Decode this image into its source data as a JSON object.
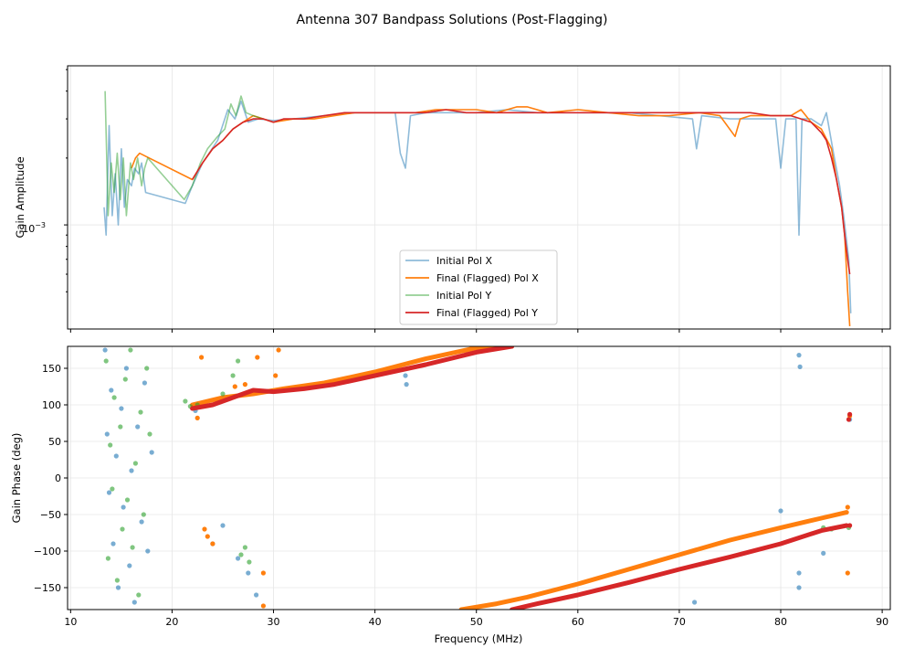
{
  "chart_data": [
    {
      "type": "line",
      "title": "Antenna 307 Bandpass Solutions (Post-Flagging)",
      "ylabel": "Gain Amplitude",
      "yscale": "log",
      "xlim": [
        9.7,
        90.8
      ],
      "ylim": [
        0.00034,
        0.0052
      ],
      "ytick_label": "10",
      "ytick_exponent": "−3",
      "legend_position": "lower center",
      "grid": true,
      "series": [
        {
          "name": "Initial Pol X",
          "color": "#1f77b4",
          "alpha": 0.5,
          "x": [
            13.3,
            13.5,
            13.8,
            14.1,
            14.4,
            14.7,
            15.0,
            15.3,
            15.6,
            16.0,
            16.3,
            16.7,
            17.0,
            17.4,
            21.3,
            22.0,
            23.0,
            24.5,
            25.5,
            26.2,
            26.8,
            27.5,
            28.5,
            30,
            32,
            35,
            38,
            40,
            42,
            42.5,
            43.0,
            43.5,
            45,
            47,
            50,
            53,
            56,
            59,
            62,
            65,
            68,
            71.3,
            71.7,
            72.2,
            75,
            77,
            79.5,
            80.0,
            80.5,
            81.5,
            81.8,
            82.1,
            83,
            84,
            84.5,
            85.2,
            85.8,
            86.2,
            86.7,
            86.9
          ],
          "y": [
            0.0012,
            0.0009,
            0.0028,
            0.0011,
            0.0017,
            0.001,
            0.0022,
            0.0012,
            0.0016,
            0.0015,
            0.0018,
            0.0017,
            0.0019,
            0.0014,
            0.00125,
            0.0015,
            0.0019,
            0.0024,
            0.0033,
            0.003,
            0.0036,
            0.0029,
            0.003,
            0.00295,
            0.003,
            0.0031,
            0.0032,
            0.0032,
            0.0032,
            0.0021,
            0.0018,
            0.0031,
            0.0032,
            0.0032,
            0.0032,
            0.0033,
            0.0032,
            0.0032,
            0.0032,
            0.0032,
            0.0031,
            0.003,
            0.0022,
            0.0031,
            0.003,
            0.003,
            0.003,
            0.0018,
            0.003,
            0.003,
            0.0009,
            0.003,
            0.003,
            0.0028,
            0.0032,
            0.0021,
            0.0015,
            0.0011,
            0.0007,
            0.0004
          ]
        },
        {
          "name": "Final (Flagged) Pol X",
          "color": "#ff7f0e",
          "alpha": 1.0,
          "x": [
            16.0,
            16.4,
            16.8,
            22.0,
            23,
            24,
            25,
            26,
            27,
            28,
            29,
            30,
            32,
            34,
            36,
            38,
            40,
            42,
            44,
            46,
            48,
            50,
            52,
            54,
            55,
            57,
            60,
            63,
            66,
            69,
            72,
            74,
            75.5,
            76,
            77,
            79,
            81,
            82,
            83,
            84,
            85,
            85.5,
            86,
            86.3,
            86.6,
            86.8
          ],
          "y": [
            0.0018,
            0.002,
            0.0021,
            0.0016,
            0.0019,
            0.0022,
            0.0024,
            0.0027,
            0.0029,
            0.0031,
            0.003,
            0.0029,
            0.003,
            0.003,
            0.0031,
            0.0032,
            0.0032,
            0.0032,
            0.0032,
            0.0033,
            0.0033,
            0.0033,
            0.0032,
            0.0034,
            0.0034,
            0.0032,
            0.0033,
            0.0032,
            0.0031,
            0.0031,
            0.0032,
            0.0031,
            0.0025,
            0.003,
            0.0031,
            0.0031,
            0.0031,
            0.0033,
            0.0029,
            0.0027,
            0.0022,
            0.0016,
            0.0012,
            0.0009,
            0.0005,
            0.00035
          ]
        },
        {
          "name": "Initial Pol Y",
          "color": "#2ca02c",
          "alpha": 0.5,
          "x": [
            13.4,
            13.7,
            14.0,
            14.3,
            14.6,
            14.9,
            15.2,
            15.5,
            15.9,
            16.2,
            16.6,
            17.0,
            17.3,
            17.6,
            21.2,
            22.0,
            22.8,
            23.5,
            24.5,
            25.2,
            25.8,
            26.3,
            26.8,
            27.3,
            28,
            29
          ],
          "y": [
            0.004,
            0.0011,
            0.0019,
            0.0014,
            0.0021,
            0.0013,
            0.002,
            0.0011,
            0.0019,
            0.0016,
            0.002,
            0.0015,
            0.0018,
            0.002,
            0.0013,
            0.0015,
            0.0019,
            0.0022,
            0.0025,
            0.0027,
            0.0035,
            0.0031,
            0.0038,
            0.0032,
            0.0031,
            0.003
          ]
        },
        {
          "name": "Final (Flagged) Pol Y",
          "color": "#d62728",
          "alpha": 1.0,
          "x": [
            22.0,
            23,
            24,
            25,
            26,
            27,
            28,
            29,
            30,
            31,
            33,
            35,
            37,
            39,
            41,
            43,
            45,
            47,
            49,
            51,
            53,
            55,
            57,
            59,
            61,
            63,
            65,
            67,
            69,
            71,
            73,
            75,
            77,
            79,
            80,
            81,
            82,
            83,
            84,
            84.5,
            85,
            85.5,
            86,
            86.3,
            86.6,
            86.8
          ],
          "y": [
            0.0016,
            0.0019,
            0.0022,
            0.0024,
            0.0027,
            0.0029,
            0.003,
            0.003,
            0.0029,
            0.003,
            0.003,
            0.0031,
            0.0032,
            0.0032,
            0.0032,
            0.0032,
            0.0032,
            0.0033,
            0.0032,
            0.0032,
            0.0032,
            0.0032,
            0.0032,
            0.0032,
            0.0032,
            0.0032,
            0.0032,
            0.0032,
            0.0032,
            0.0032,
            0.0032,
            0.0032,
            0.0032,
            0.0031,
            0.0031,
            0.0031,
            0.003,
            0.0029,
            0.0026,
            0.0024,
            0.002,
            0.0016,
            0.0012,
            0.0009,
            0.0007,
            0.0006
          ]
        }
      ]
    },
    {
      "type": "scatter",
      "xlabel": "Frequency (MHz)",
      "ylabel": "Gain Phase (deg)",
      "xlim": [
        9.7,
        90.8
      ],
      "ylim": [
        -180,
        180
      ],
      "xticks": [
        10,
        20,
        30,
        40,
        50,
        60,
        70,
        80,
        90
      ],
      "yticks": [
        -150,
        -100,
        -50,
        0,
        50,
        100,
        150
      ],
      "grid": true,
      "series": [
        {
          "name": "Initial Pol X",
          "color": "#1f77b4",
          "alpha": 0.6,
          "points": [
            [
              13.4,
              175
            ],
            [
              13.6,
              60
            ],
            [
              13.8,
              -20
            ],
            [
              14.0,
              120
            ],
            [
              14.2,
              -90
            ],
            [
              14.5,
              30
            ],
            [
              14.7,
              -150
            ],
            [
              15.0,
              95
            ],
            [
              15.2,
              -40
            ],
            [
              15.5,
              150
            ],
            [
              15.8,
              -120
            ],
            [
              16.0,
              10
            ],
            [
              16.3,
              -170
            ],
            [
              16.6,
              70
            ],
            [
              17.0,
              -60
            ],
            [
              17.3,
              130
            ],
            [
              17.6,
              -100
            ],
            [
              18.0,
              35
            ],
            [
              22.3,
              92
            ],
            [
              24.0,
              -90
            ],
            [
              25.0,
              -65
            ],
            [
              26.5,
              -110
            ],
            [
              27.5,
              -130
            ],
            [
              28.3,
              -160
            ],
            [
              43.0,
              140
            ],
            [
              43.1,
              128
            ],
            [
              71.5,
              -170
            ],
            [
              80.0,
              -45
            ],
            [
              81.8,
              168
            ],
            [
              81.9,
              152
            ],
            [
              81.8,
              -130
            ],
            [
              81.8,
              -150
            ],
            [
              84.2,
              -103
            ],
            [
              86.8,
              80
            ]
          ]
        },
        {
          "name": "Final (Flagged) Pol X",
          "color": "#ff7f0e",
          "alpha": 1.0,
          "line_x": [
            22.0,
            25,
            28,
            31,
            35,
            40,
            45,
            50,
            53.5
          ],
          "line_y": [
            100,
            110,
            115,
            122,
            130,
            145,
            163,
            178,
            180
          ],
          "line_x2": [
            48.5,
            52,
            55,
            60,
            65,
            70,
            75,
            80,
            84,
            86.5
          ],
          "line_y2": [
            -180,
            -172,
            -163,
            -145,
            -125,
            -105,
            -85,
            -68,
            -55,
            -47
          ],
          "points": [
            [
              22.5,
              82
            ],
            [
              22.9,
              165
            ],
            [
              23.2,
              -70
            ],
            [
              23.5,
              -80
            ],
            [
              24.0,
              -90
            ],
            [
              26.2,
              125
            ],
            [
              27.2,
              128
            ],
            [
              28.4,
              165
            ],
            [
              29.0,
              -130
            ],
            [
              29.0,
              -175
            ],
            [
              30.2,
              140
            ],
            [
              30.5,
              175
            ],
            [
              86.6,
              -130
            ],
            [
              86.8,
              85
            ],
            [
              86.6,
              -40
            ]
          ]
        },
        {
          "name": "Initial Pol Y",
          "color": "#2ca02c",
          "alpha": 0.6,
          "points": [
            [
              13.5,
              160
            ],
            [
              13.7,
              -110
            ],
            [
              13.9,
              45
            ],
            [
              14.1,
              -15
            ],
            [
              14.3,
              110
            ],
            [
              14.6,
              -140
            ],
            [
              14.9,
              70
            ],
            [
              15.1,
              -70
            ],
            [
              15.4,
              135
            ],
            [
              15.6,
              -30
            ],
            [
              15.9,
              175
            ],
            [
              16.1,
              -95
            ],
            [
              16.4,
              20
            ],
            [
              16.7,
              -160
            ],
            [
              16.9,
              90
            ],
            [
              17.2,
              -50
            ],
            [
              17.5,
              150
            ],
            [
              17.8,
              60
            ],
            [
              21.3,
              105
            ],
            [
              21.8,
              98
            ],
            [
              22.5,
              100
            ],
            [
              25.0,
              115
            ],
            [
              26.0,
              140
            ],
            [
              26.5,
              160
            ],
            [
              26.8,
              -105
            ],
            [
              27.2,
              -95
            ],
            [
              27.6,
              -115
            ],
            [
              84.2,
              -68
            ],
            [
              85.0,
              -70
            ],
            [
              86.7,
              -68
            ]
          ]
        },
        {
          "name": "Final (Flagged) Pol Y",
          "color": "#d62728",
          "alpha": 1.0,
          "line_x": [
            22.0,
            24,
            26,
            28,
            30,
            33,
            36,
            40,
            45,
            50,
            53.5
          ],
          "line_y": [
            95,
            100,
            110,
            120,
            118,
            122,
            128,
            140,
            155,
            172,
            180
          ],
          "line_x2": [
            53.5,
            56,
            60,
            65,
            70,
            75,
            80,
            84,
            86.5
          ],
          "line_y2": [
            -180,
            -172,
            -160,
            -143,
            -125,
            -108,
            -90,
            -72,
            -65
          ],
          "points": [
            [
              86.7,
              80
            ],
            [
              86.8,
              87
            ],
            [
              86.8,
              -65
            ]
          ]
        }
      ]
    }
  ]
}
